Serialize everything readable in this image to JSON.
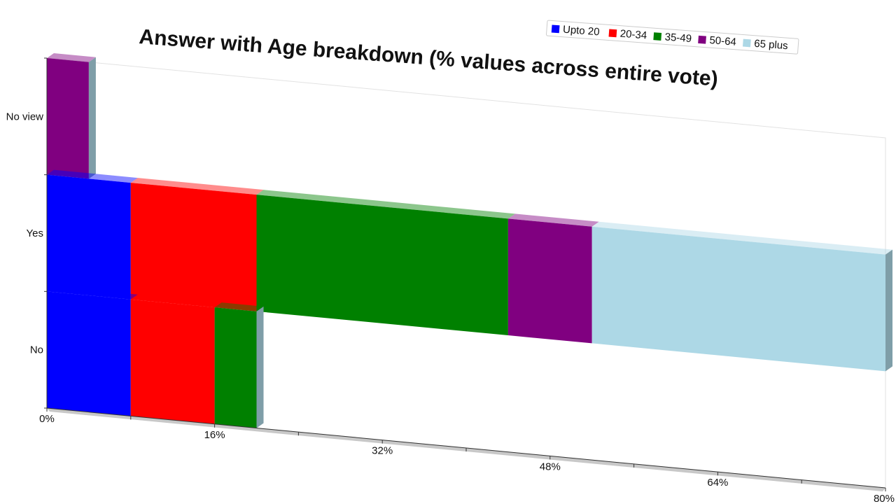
{
  "chart_data": {
    "type": "bar",
    "orientation": "horizontal",
    "stacked": true,
    "title": "Answer with Age breakdown (% values across entire vote)",
    "categories": [
      "No view",
      "Yes",
      "No"
    ],
    "series": [
      {
        "name": "Upto 20",
        "color": "#0000ff",
        "values": [
          0,
          8,
          8
        ]
      },
      {
        "name": "20-34",
        "color": "#ff0000",
        "values": [
          0,
          12,
          8
        ]
      },
      {
        "name": "35-49",
        "color": "#008000",
        "values": [
          0,
          24,
          4
        ]
      },
      {
        "name": "50-64",
        "color": "#800080",
        "values": [
          4,
          8,
          0
        ]
      },
      {
        "name": "65 plus",
        "color": "#add8e6",
        "values": [
          0,
          28,
          0
        ]
      }
    ],
    "x_ticks": [
      "0%",
      "16%",
      "32%",
      "48%",
      "64%",
      "80%"
    ],
    "xlim": [
      0,
      80
    ],
    "legend_position": "top-right",
    "grid": false
  }
}
